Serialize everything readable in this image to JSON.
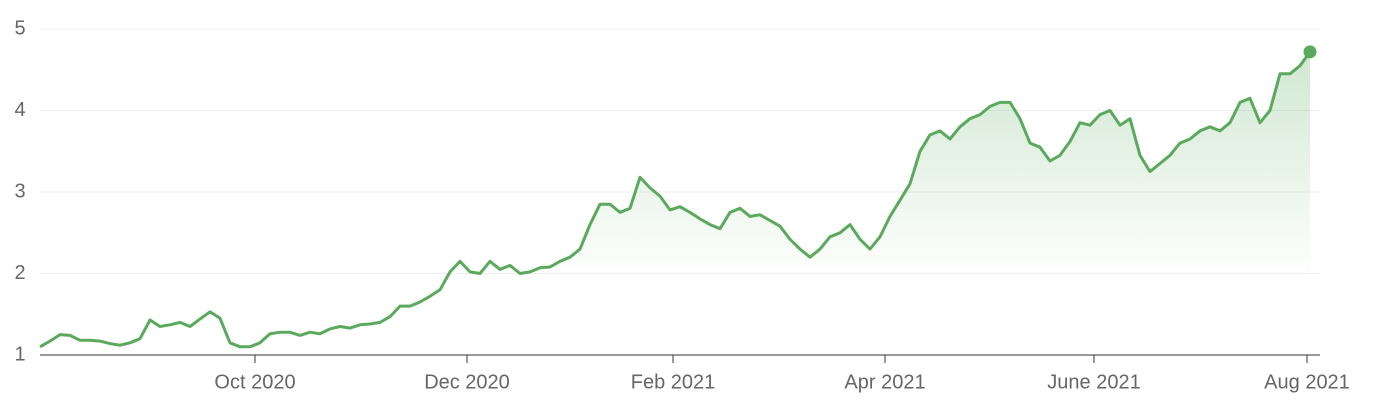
{
  "chart_data": {
    "type": "line",
    "color": "#5aa95c",
    "values": [
      1.1,
      1.17,
      1.25,
      1.24,
      1.18,
      1.18,
      1.17,
      1.14,
      1.12,
      1.15,
      1.2,
      1.43,
      1.35,
      1.37,
      1.4,
      1.35,
      1.44,
      1.53,
      1.45,
      1.15,
      1.1,
      1.1,
      1.15,
      1.26,
      1.28,
      1.28,
      1.24,
      1.28,
      1.26,
      1.32,
      1.35,
      1.33,
      1.37,
      1.38,
      1.4,
      1.47,
      1.6,
      1.6,
      1.65,
      1.72,
      1.8,
      2.02,
      2.15,
      2.02,
      2.0,
      2.15,
      2.05,
      2.1,
      2.0,
      2.02,
      2.07,
      2.08,
      2.15,
      2.2,
      2.3,
      2.6,
      2.85,
      2.85,
      2.75,
      2.8,
      3.18,
      3.05,
      2.95,
      2.78,
      2.82,
      2.75,
      2.67,
      2.6,
      2.55,
      2.75,
      2.8,
      2.7,
      2.72,
      2.65,
      2.58,
      2.42,
      2.3,
      2.2,
      2.3,
      2.45,
      2.5,
      2.6,
      2.42,
      2.3,
      2.45,
      2.7,
      2.9,
      3.1,
      3.5,
      3.7,
      3.75,
      3.65,
      3.8,
      3.9,
      3.95,
      4.05,
      4.1,
      4.1,
      3.9,
      3.6,
      3.55,
      3.38,
      3.45,
      3.62,
      3.85,
      3.82,
      3.95,
      4.0,
      3.82,
      3.9,
      3.45,
      3.25,
      3.35,
      3.45,
      3.6,
      3.65,
      3.75,
      3.8,
      3.75,
      3.85,
      4.1,
      4.15,
      3.85,
      4.0,
      4.45,
      4.45,
      4.55,
      4.72
    ],
    "xlim": [
      0,
      127
    ],
    "xticks": [
      {
        "value": 21.5,
        "label": "Oct 2020"
      },
      {
        "value": 42.7,
        "label": "Dec 2020"
      },
      {
        "value": 63.3,
        "label": "Feb 2021"
      },
      {
        "value": 84.5,
        "label": "Apr 2021"
      },
      {
        "value": 105.4,
        "label": "June 2021"
      },
      {
        "value": 126.7,
        "label": "Aug 2021"
      }
    ],
    "ylim": [
      1,
      5
    ],
    "yticks": [
      1,
      2,
      3,
      4,
      5
    ],
    "grid": true
  }
}
